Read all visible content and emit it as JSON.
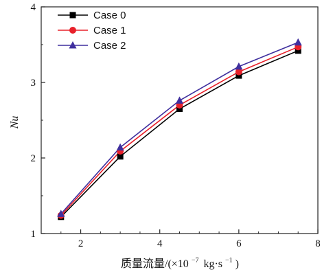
{
  "chart_data": {
    "type": "line",
    "x": [
      1.5,
      3.0,
      4.5,
      6.0,
      7.5
    ],
    "series": [
      {
        "name": "Case 0",
        "values": [
          1.22,
          2.02,
          2.65,
          3.09,
          3.42
        ],
        "color": "#000000",
        "marker": "square"
      },
      {
        "name": "Case 1",
        "values": [
          1.24,
          2.09,
          2.7,
          3.14,
          3.47
        ],
        "color": "#e8202a",
        "marker": "circle"
      },
      {
        "name": "Case 2",
        "values": [
          1.26,
          2.14,
          2.76,
          3.21,
          3.53
        ],
        "color": "#3f2f9e",
        "marker": "triangle"
      }
    ],
    "xlim": [
      1,
      8
    ],
    "ylim": [
      1,
      4
    ],
    "xticks": [
      2,
      4,
      6,
      8
    ],
    "yticks": [
      1,
      2,
      3,
      4
    ],
    "xlabel_prefix": "质量流量/(×10",
    "xlabel_exp1": "−7",
    "xlabel_mid": "kg·s",
    "xlabel_exp2": "−1",
    "xlabel_suffix": ")",
    "ylabel": "Nu",
    "legend_position": "top-left",
    "grid": false
  }
}
